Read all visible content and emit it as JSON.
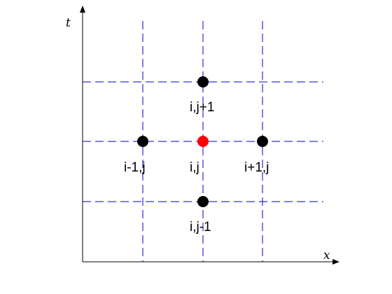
{
  "axes": {
    "x_label": "x",
    "t_label": "t"
  },
  "grid": {
    "line_color": "#0000cc",
    "dash": "dashed"
  },
  "nodes": [
    {
      "id": "center",
      "label": "i,j",
      "color": "#ff0000"
    },
    {
      "id": "left",
      "label": "i-1,j",
      "color": "#000000"
    },
    {
      "id": "right",
      "label": "i+1,j",
      "color": "#000000"
    },
    {
      "id": "top",
      "label": "i,j+1",
      "color": "#000000"
    },
    {
      "id": "bottom",
      "label": "i,j-1",
      "color": "#000000"
    }
  ]
}
